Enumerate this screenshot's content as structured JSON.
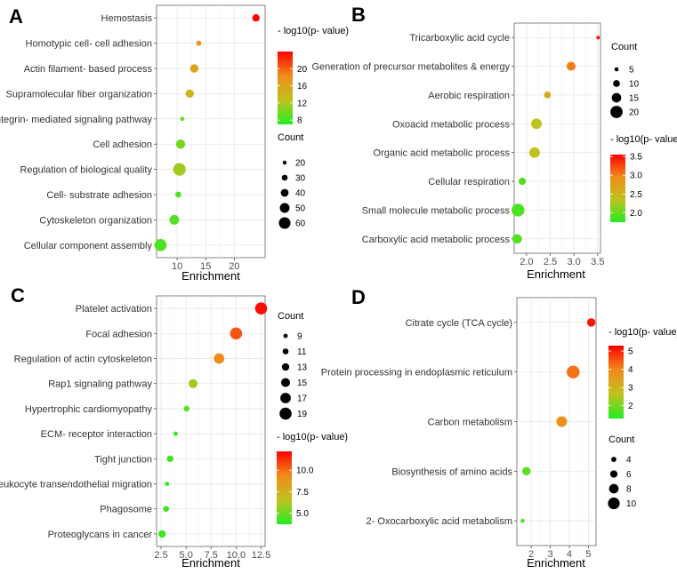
{
  "figure": {
    "x_axis_label": "Enrichment",
    "pvalue_legend_title": "- log10(p- value)",
    "count_legend_title": "Count",
    "gradient_colors": [
      "#22ee22",
      "#bfc21e",
      "#f08c1a",
      "#ff0000"
    ]
  },
  "chart_data": [
    {
      "panel": "A",
      "type": "scatter",
      "xlabel": "Enrichment",
      "xlim": [
        6.4,
        25.4
      ],
      "xticks": [
        10,
        15,
        20
      ],
      "xtick_labels": [
        "10",
        "15",
        "20"
      ],
      "categories": [
        "Cellular component assembly",
        "Cytoskeleton organization",
        "Cell- substrate adhesion",
        "Regulation of biological quality",
        "Cell adhesion",
        "Integrin- mediated signaling pathway",
        "Supramolecular fiber organization",
        "Actin filament- based process",
        "Homotypic cell- cell adhesion",
        "Hemostasis"
      ],
      "enrichment": [
        7.1,
        9.5,
        10.2,
        10.4,
        10.6,
        10.9,
        12.2,
        13.0,
        13.8,
        23.8
      ],
      "count": [
        62,
        50,
        31,
        65,
        48,
        21,
        42,
        43,
        26,
        38
      ],
      "neg_log10_p": [
        8.6,
        8.8,
        8.6,
        11.5,
        10.1,
        9.3,
        14.0,
        16.0,
        17.5,
        23.8
      ],
      "color_scale": {
        "min": 7,
        "max": 24,
        "ticks": [
          8,
          12,
          16,
          20
        ],
        "tick_labels": [
          "8",
          "12",
          "16",
          "20"
        ]
      },
      "size_scale": {
        "values": [
          20,
          30,
          40,
          50,
          60
        ],
        "labels": [
          "20",
          "30",
          "40",
          "50",
          "60"
        ],
        "min": 18,
        "max": 66
      }
    },
    {
      "panel": "B",
      "type": "scatter",
      "xlabel": "Enrichment",
      "xlim": [
        1.74,
        3.56
      ],
      "xticks": [
        2.0,
        2.5,
        3.0,
        3.5
      ],
      "xtick_labels": [
        "2.0",
        "2.5",
        "3.0",
        "3.5"
      ],
      "categories": [
        "Carboxylic acid metabolic process",
        "Small molecule metabolic process",
        "Cellular respiration",
        "Organic acid metabolic process",
        "Oxoacid metabolic process",
        "Aerobic respiration",
        "Generation of precursor metabolites & energy",
        "Tricarboxylic acid cycle"
      ],
      "enrichment": [
        1.8,
        1.82,
        1.91,
        2.17,
        2.21,
        2.44,
        2.94,
        3.51
      ],
      "count": [
        15,
        21,
        11,
        17,
        17,
        10,
        14,
        4
      ],
      "neg_log10_p": [
        1.95,
        1.9,
        1.95,
        2.35,
        2.35,
        2.6,
        3.0,
        3.5
      ],
      "color_scale": {
        "min": 1.75,
        "max": 3.55,
        "ticks": [
          2.0,
          2.5,
          3.0,
          3.5
        ],
        "tick_labels": [
          "2.0",
          "2.5",
          "3.0",
          "3.5"
        ]
      },
      "size_scale": {
        "values": [
          5,
          10,
          15,
          20
        ],
        "labels": [
          "5",
          "10",
          "15",
          "20"
        ],
        "min": 4,
        "max": 21
      }
    },
    {
      "panel": "C",
      "type": "scatter",
      "xlabel": "Enrichment",
      "xlim": [
        2.05,
        12.9
      ],
      "xticks": [
        2.5,
        5.0,
        7.5,
        10.0,
        12.5
      ],
      "xtick_labels": [
        "2.5",
        "5.0",
        "7.5",
        "10.0",
        "12.5"
      ],
      "categories": [
        "Proteoglycans in cancer",
        "Phagosome",
        "Leukocyte transendothelial migration",
        "Tight junction",
        "ECM- receptor interaction",
        "Hypertrophic cardiomyopathy",
        "Rap1 signaling pathway",
        "Regulation of actin cytoskeleton",
        "Focal adhesion",
        "Platelet activation"
      ],
      "enrichment": [
        2.6,
        3.0,
        3.1,
        3.4,
        3.95,
        5.05,
        5.7,
        8.3,
        10.0,
        12.5
      ],
      "count": [
        13,
        11,
        9,
        12,
        9,
        11,
        15,
        17,
        19,
        19
      ],
      "neg_log10_p": [
        4.2,
        4.2,
        4.0,
        4.3,
        4.0,
        4.8,
        6.0,
        9.3,
        10.5,
        12.0
      ],
      "color_scale": {
        "min": 3.7,
        "max": 12.2,
        "ticks": [
          5.0,
          7.5,
          10.0
        ],
        "tick_labels": [
          "5.0",
          "7.5",
          "10.0"
        ]
      },
      "size_scale": {
        "values": [
          9,
          11,
          13,
          15,
          17,
          19
        ],
        "labels": [
          "9",
          "11",
          "13",
          "15",
          "17",
          "19"
        ],
        "min": 8,
        "max": 20
      }
    },
    {
      "panel": "D",
      "type": "scatter",
      "xlabel": "Enrichment",
      "xlim": [
        1.25,
        5.4
      ],
      "xticks": [
        2,
        3,
        4,
        5
      ],
      "xtick_labels": [
        "2",
        "3",
        "4",
        "5"
      ],
      "categories": [
        "2- Oxocarboxylic acid metabolism",
        "Biosynthesis of amino acids",
        "Carbon metabolism",
        "Protein processing in endoplasmic reticulum",
        "Citrate cycle (TCA cycle)"
      ],
      "enrichment": [
        1.55,
        1.75,
        3.6,
        4.2,
        5.15
      ],
      "count": [
        3,
        7,
        9,
        11,
        7
      ],
      "neg_log10_p": [
        1.6,
        1.8,
        3.8,
        4.2,
        5.1
      ],
      "color_scale": {
        "min": 1.3,
        "max": 5.3,
        "ticks": [
          2,
          3,
          4,
          5
        ],
        "tick_labels": [
          "2",
          "3",
          "4",
          "5"
        ]
      },
      "size_scale": {
        "values": [
          4,
          6,
          8,
          10
        ],
        "labels": [
          "4",
          "6",
          "8",
          "10"
        ],
        "min": 2.5,
        "max": 11
      }
    }
  ]
}
